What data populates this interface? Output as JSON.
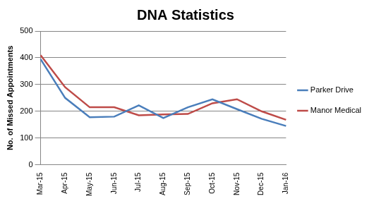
{
  "chart_data": {
    "type": "line",
    "title": "DNA Statistics",
    "y_label": "No. of Missed Appointments",
    "categories": [
      "Mar-15",
      "Apr-15",
      "May-15",
      "Jun-15",
      "Jul-15",
      "Aug-15",
      "Sep-15",
      "Oct-15",
      "Nov-15",
      "Dec-15",
      "Jan-16"
    ],
    "series": [
      {
        "name": "Parker Drive",
        "color": "#4a7ebb",
        "values": [
          395,
          250,
          178,
          180,
          222,
          175,
          215,
          245,
          208,
          172,
          145
        ]
      },
      {
        "name": "Manor Medical",
        "color": "#be4b48",
        "values": [
          410,
          290,
          215,
          215,
          185,
          188,
          190,
          230,
          245,
          200,
          168
        ]
      }
    ],
    "ylim": [
      0,
      500
    ],
    "yticks": [
      0,
      100,
      200,
      300,
      400,
      500
    ],
    "grid": true,
    "legend": "right"
  }
}
